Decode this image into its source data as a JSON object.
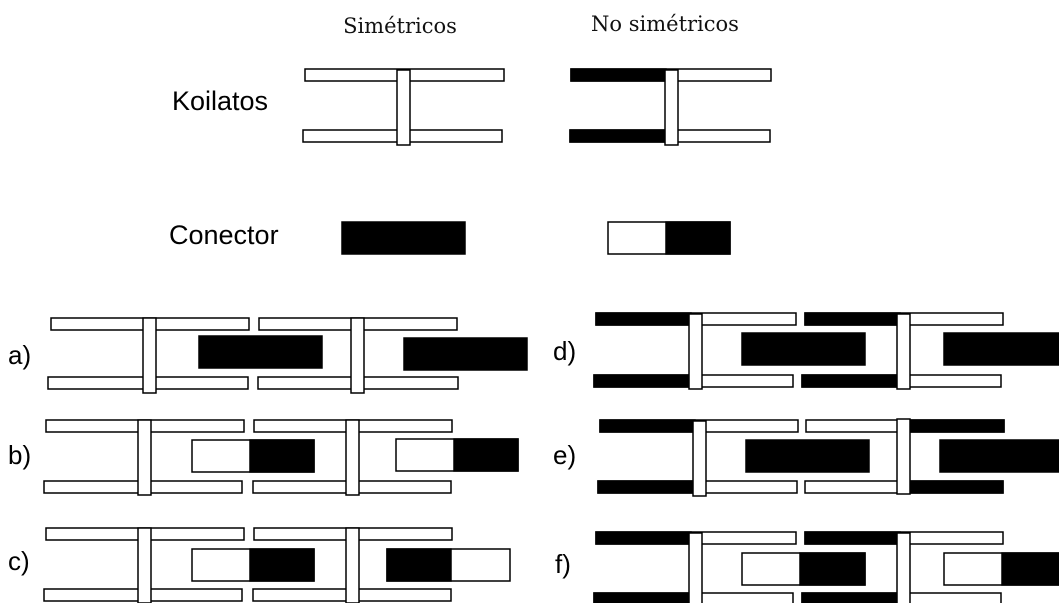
{
  "headers": {
    "symmetric": "Simétricos",
    "asymmetric": "No simétricos"
  },
  "rows": {
    "koilatos": "Koilatos",
    "conector": "Conector"
  },
  "variants": {
    "a": "a)",
    "b": "b)",
    "c": "c)",
    "d": "d)",
    "e": "e)",
    "f": "f)"
  },
  "colors": {
    "stroke": "#000000",
    "fill_dark": "#000000",
    "fill_light": "#ffffff"
  }
}
